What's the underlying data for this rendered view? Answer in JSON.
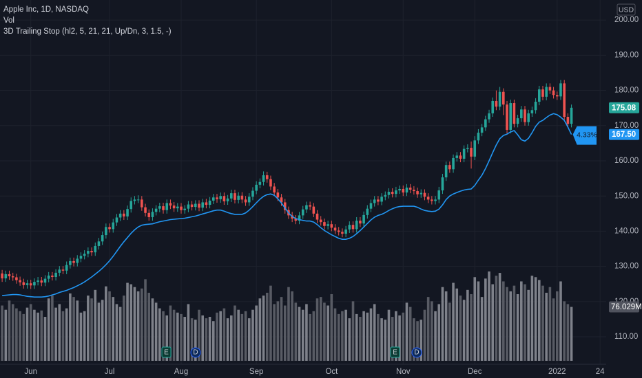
{
  "chart_data": {
    "type": "candlestick",
    "title": "Apple Inc, 1D, NASDAQ",
    "indicators": [
      "Vol",
      "3D Trailing Stop (hl2, 5, 21, 21, Up/Dn, 3, 1.5, -)"
    ],
    "currency": "USD",
    "grid": true,
    "xlim": [
      -0.6,
      168.7
    ],
    "xticks": [
      {
        "value": 8,
        "label": "Jun"
      },
      {
        "value": 30,
        "label": "Jul"
      },
      {
        "value": 50,
        "label": "Aug"
      },
      {
        "value": 71,
        "label": "Sep"
      },
      {
        "value": 92,
        "label": "Oct"
      },
      {
        "value": 112,
        "label": "Nov"
      },
      {
        "value": 132,
        "label": "Dec"
      },
      {
        "value": 155,
        "label": "2022"
      },
      {
        "value": 167,
        "label": "24"
      }
    ],
    "ylim": [
      102.2,
      205.7
    ],
    "yticks": [
      {
        "value": 110,
        "label": "110.00"
      },
      {
        "value": 120,
        "label": "120.00"
      },
      {
        "value": 130,
        "label": "130.00"
      },
      {
        "value": 140,
        "label": "140.00"
      },
      {
        "value": 150,
        "label": "150.00"
      },
      {
        "value": 160,
        "label": "160.00"
      },
      {
        "value": 170,
        "label": "170.00"
      },
      {
        "value": 180,
        "label": "180.00"
      },
      {
        "value": 190,
        "label": "190.00"
      },
      {
        "value": 200,
        "label": "200.00"
      }
    ],
    "events": [
      "E",
      "D",
      "E",
      "D"
    ],
    "candles": {
      "up_color": "#26a69a",
      "down_color": "#ef5350",
      "last_label": "175.08",
      "open": [
        128.0,
        126.6,
        127.8,
        127.2,
        126.9,
        126.1,
        125.5,
        124.7,
        125.2,
        124.6,
        125.6,
        126.0,
        125.4,
        126.5,
        127.4,
        127.0,
        128.2,
        129.1,
        128.8,
        130.4,
        131.5,
        131.0,
        132.2,
        133.0,
        133.6,
        134.4,
        134.0,
        135.8,
        137.1,
        138.9,
        141.2,
        140.6,
        142.5,
        143.9,
        145.0,
        144.2,
        146.3,
        148.6,
        149.0,
        149.0,
        146.8,
        145.2,
        144.0,
        145.5,
        146.4,
        147.1,
        146.0,
        148.0,
        147.3,
        146.5,
        147.0,
        146.0,
        146.4,
        147.6,
        146.9,
        147.8,
        146.7,
        148.2,
        147.5,
        148.7,
        149.6,
        149.1,
        150.0,
        148.5,
        149.3,
        150.8,
        148.9,
        150.1,
        149.0,
        148.2,
        149.8,
        151.5,
        153.2,
        154.0,
        155.9,
        154.8,
        152.7,
        151.0,
        149.6,
        148.2,
        146.0,
        144.5,
        143.6,
        143.0,
        144.5,
        146.2,
        147.4,
        147.0,
        145.0,
        143.3,
        142.6,
        141.5,
        142.0,
        141.0,
        140.2,
        139.8,
        139.3,
        140.5,
        141.8,
        140.6,
        143.0,
        142.2,
        144.6,
        146.4,
        148.0,
        149.0,
        148.4,
        149.8,
        150.3,
        151.2,
        150.6,
        151.6,
        152.0,
        151.0,
        152.4,
        151.8,
        151.4,
        150.5,
        150.9,
        149.8,
        149.0,
        148.6,
        149.0,
        151.6,
        155.3,
        158.8,
        157.6,
        160.8,
        161.5,
        160.6,
        163.4,
        163.7,
        161.2,
        165.8,
        168.0,
        169.5,
        171.8,
        173.5,
        177.0,
        175.4,
        179.6,
        176.0,
        168.8,
        176.4,
        170.5,
        172.1,
        174.6,
        171.0,
        173.5,
        174.4,
        176.8,
        180.3,
        178.2,
        181.0,
        180.0,
        178.7,
        178.3,
        182.0,
        172.5,
        170.5
      ],
      "high": [
        129.0,
        128.8,
        128.8,
        128.2,
        127.9,
        127.1,
        126.5,
        126.2,
        126.2,
        126.6,
        127.0,
        127.0,
        127.5,
        128.4,
        128.4,
        129.2,
        130.1,
        130.1,
        131.4,
        132.5,
        132.5,
        133.2,
        134.0,
        134.6,
        135.4,
        135.4,
        136.8,
        138.1,
        139.9,
        142.2,
        142.2,
        143.5,
        144.9,
        146.0,
        146.0,
        147.3,
        149.6,
        150.0,
        150.2,
        150.0,
        147.8,
        146.2,
        146.5,
        147.4,
        148.1,
        148.1,
        149.0,
        149.0,
        148.3,
        148.0,
        148.0,
        147.4,
        148.6,
        148.6,
        148.8,
        148.8,
        149.2,
        149.2,
        149.7,
        150.6,
        150.6,
        151.0,
        151.0,
        150.3,
        151.8,
        151.8,
        151.1,
        151.1,
        150.0,
        150.8,
        152.5,
        154.2,
        155.0,
        157.0,
        156.9,
        155.8,
        153.7,
        152.0,
        150.6,
        149.2,
        147.0,
        145.5,
        144.6,
        145.5,
        147.2,
        148.4,
        148.4,
        148.0,
        146.0,
        144.3,
        143.6,
        143.0,
        143.0,
        142.0,
        141.2,
        140.8,
        141.5,
        142.8,
        142.8,
        144.0,
        144.0,
        145.6,
        147.4,
        149.0,
        150.0,
        150.0,
        150.8,
        151.3,
        152.2,
        152.2,
        152.6,
        153.0,
        153.0,
        153.4,
        153.4,
        152.8,
        152.4,
        151.9,
        151.9,
        150.8,
        150.0,
        150.0,
        152.6,
        156.3,
        159.8,
        159.8,
        161.8,
        162.5,
        162.5,
        164.4,
        164.7,
        165.5,
        167.0,
        169.0,
        170.5,
        172.8,
        174.5,
        178.0,
        180.0,
        181.0,
        180.6,
        177.0,
        177.4,
        177.4,
        173.1,
        175.6,
        175.6,
        174.5,
        175.4,
        177.8,
        181.3,
        181.3,
        182.0,
        182.0,
        181.0,
        179.7,
        183.0,
        183.0,
        173.5,
        176.0
      ],
      "low": [
        125.6,
        125.6,
        126.2,
        125.9,
        125.1,
        124.5,
        123.7,
        123.7,
        123.6,
        123.6,
        124.6,
        124.4,
        124.4,
        125.5,
        126.0,
        126.0,
        127.2,
        127.8,
        127.8,
        129.4,
        130.0,
        130.0,
        131.2,
        132.0,
        132.6,
        133.0,
        133.0,
        134.8,
        136.1,
        137.9,
        139.6,
        139.6,
        141.5,
        142.9,
        143.2,
        143.2,
        145.3,
        147.6,
        148.0,
        145.8,
        144.2,
        143.0,
        143.0,
        144.5,
        145.4,
        145.0,
        145.0,
        146.3,
        145.5,
        145.5,
        145.0,
        145.0,
        145.4,
        145.9,
        145.9,
        145.7,
        145.7,
        146.5,
        146.5,
        147.7,
        148.1,
        148.1,
        147.5,
        147.5,
        148.3,
        147.9,
        147.9,
        148.0,
        147.2,
        147.2,
        148.8,
        150.5,
        152.2,
        153.0,
        153.8,
        151.7,
        150.0,
        148.6,
        147.2,
        145.0,
        143.5,
        142.6,
        142.0,
        142.0,
        143.5,
        145.2,
        146.0,
        144.0,
        142.3,
        141.6,
        140.5,
        140.5,
        140.0,
        139.2,
        138.8,
        138.3,
        138.3,
        139.5,
        139.6,
        139.6,
        141.2,
        141.2,
        143.6,
        145.4,
        147.0,
        147.4,
        147.4,
        148.8,
        149.3,
        149.6,
        149.6,
        150.6,
        150.0,
        150.0,
        150.8,
        150.4,
        149.5,
        149.5,
        148.8,
        148.0,
        147.6,
        147.6,
        148.0,
        150.6,
        154.3,
        156.6,
        156.6,
        159.8,
        159.6,
        159.6,
        162.4,
        157.8,
        160.2,
        164.8,
        167.0,
        168.5,
        170.8,
        172.5,
        174.4,
        174.4,
        173.0,
        167.8,
        167.8,
        169.5,
        169.5,
        171.1,
        170.0,
        170.0,
        172.5,
        173.4,
        175.8,
        177.2,
        177.2,
        179.0,
        177.7,
        177.3,
        177.3,
        171.5,
        169.5,
        169.5
      ],
      "close": [
        126.6,
        127.8,
        127.2,
        126.9,
        126.1,
        125.5,
        124.7,
        125.2,
        124.6,
        125.6,
        126.0,
        125.4,
        126.5,
        127.4,
        127.0,
        128.2,
        129.1,
        128.8,
        130.4,
        131.5,
        131.0,
        132.2,
        133.0,
        133.6,
        134.4,
        134.0,
        135.8,
        137.1,
        138.9,
        141.2,
        140.6,
        142.5,
        143.9,
        145.0,
        144.2,
        146.3,
        148.6,
        149.0,
        149.0,
        146.8,
        145.2,
        144.0,
        145.5,
        146.4,
        147.1,
        146.0,
        148.0,
        147.3,
        146.5,
        147.0,
        146.0,
        146.4,
        147.6,
        146.9,
        147.8,
        146.7,
        148.2,
        147.5,
        148.7,
        149.6,
        149.1,
        150.0,
        148.5,
        149.3,
        150.8,
        148.9,
        150.1,
        149.0,
        148.2,
        149.8,
        151.5,
        153.2,
        154.0,
        155.9,
        154.8,
        152.7,
        151.0,
        149.6,
        148.2,
        146.0,
        144.5,
        143.6,
        143.0,
        144.5,
        146.2,
        147.4,
        147.0,
        145.0,
        143.3,
        142.6,
        141.5,
        142.0,
        141.0,
        140.2,
        139.8,
        139.3,
        140.5,
        141.8,
        140.6,
        143.0,
        142.2,
        144.6,
        146.4,
        148.0,
        149.0,
        148.4,
        149.8,
        150.3,
        151.2,
        150.6,
        151.6,
        152.0,
        151.0,
        152.4,
        151.8,
        151.4,
        150.5,
        150.9,
        149.8,
        149.0,
        148.6,
        149.0,
        151.6,
        155.3,
        158.8,
        157.6,
        160.8,
        161.5,
        160.6,
        163.4,
        163.7,
        161.2,
        165.8,
        168.0,
        169.5,
        171.8,
        173.5,
        177.0,
        175.4,
        179.6,
        176.0,
        168.8,
        176.4,
        170.5,
        172.1,
        174.6,
        171.0,
        173.5,
        174.4,
        176.8,
        180.3,
        178.2,
        181.0,
        180.0,
        178.7,
        178.3,
        182.0,
        172.5,
        170.5,
        175.08
      ]
    },
    "trailing_stop": {
      "color": "#2196f3",
      "last_label": "167.50",
      "annotation": "4.33%",
      "values": [
        121.7,
        121.8,
        121.9,
        122.0,
        122.0,
        121.9,
        121.7,
        121.5,
        121.4,
        121.3,
        121.3,
        121.3,
        121.4,
        121.6,
        121.9,
        122.2,
        122.6,
        122.9,
        123.2,
        123.6,
        124.0,
        124.5,
        125.0,
        125.6,
        126.3,
        127.0,
        127.8,
        128.6,
        129.5,
        130.5,
        131.6,
        132.9,
        134.3,
        135.7,
        137.0,
        138.2,
        139.4,
        140.4,
        141.2,
        141.7,
        141.9,
        142.0,
        142.1,
        142.4,
        142.7,
        142.9,
        143.1,
        143.3,
        143.4,
        143.5,
        143.6,
        143.7,
        143.9,
        144.1,
        144.3,
        144.6,
        144.9,
        145.2,
        145.5,
        145.8,
        146.0,
        146.0,
        145.7,
        145.3,
        145.0,
        144.8,
        144.8,
        144.8,
        145.2,
        146.0,
        147.0,
        148.1,
        149.1,
        149.9,
        150.4,
        150.6,
        150.2,
        149.2,
        148.0,
        146.6,
        145.2,
        144.2,
        143.6,
        143.3,
        143.1,
        142.9,
        142.9,
        142.6,
        141.9,
        141.0,
        140.2,
        139.6,
        139.0,
        138.5,
        138.0,
        137.7,
        137.7,
        138.0,
        138.5,
        139.3,
        140.2,
        141.2,
        142.2,
        143.2,
        144.0,
        144.5,
        144.8,
        145.3,
        145.9,
        146.4,
        146.8,
        147.0,
        147.1,
        147.1,
        147.1,
        147.1,
        146.8,
        146.3,
        145.9,
        145.7,
        145.6,
        145.7,
        146.3,
        147.5,
        149.0,
        150.0,
        150.6,
        151.0,
        151.4,
        151.7,
        151.9,
        152.0,
        153.0,
        154.5,
        155.9,
        157.8,
        160.0,
        162.3,
        164.5,
        166.3,
        167.2,
        167.6,
        168.2,
        168.6,
        167.4,
        166.0,
        165.6,
        166.4,
        168.0,
        169.8,
        171.0,
        171.5,
        172.3,
        173.0,
        173.4,
        173.1,
        172.4,
        171.5,
        169.6,
        167.5
      ]
    },
    "volume": {
      "up_color": "#7e818a",
      "down_color": "#585b64",
      "last_label": "76.029M",
      "values": [
        78,
        72,
        85,
        80,
        74,
        70,
        66,
        75,
        80,
        72,
        68,
        71,
        62,
        88,
        92,
        75,
        80,
        70,
        74,
        95,
        90,
        85,
        68,
        70,
        92,
        88,
        100,
        82,
        86,
        105,
        98,
        90,
        80,
        76,
        92,
        110,
        108,
        104,
        98,
        102,
        115,
        96,
        88,
        82,
        74,
        70,
        64,
        78,
        72,
        68,
        66,
        62,
        80,
        60,
        58,
        72,
        64,
        60,
        62,
        56,
        68,
        70,
        74,
        60,
        64,
        78,
        72,
        66,
        70,
        60,
        72,
        78,
        88,
        92,
        96,
        106,
        80,
        84,
        90,
        78,
        104,
        98,
        82,
        76,
        72,
        80,
        66,
        70,
        88,
        90,
        82,
        78,
        94,
        74,
        66,
        70,
        72,
        60,
        84,
        66,
        62,
        70,
        68,
        74,
        80,
        66,
        60,
        58,
        72,
        62,
        70,
        64,
        68,
        82,
        76,
        60,
        56,
        58,
        72,
        90,
        84,
        70,
        80,
        104,
        98,
        82,
        110,
        102,
        92,
        86,
        100,
        94,
        118,
        112,
        90,
        116,
        126,
        108,
        120,
        124,
        112,
        104,
        98,
        106,
        94,
        112,
        108,
        100,
        120,
        118,
        114,
        106,
        96,
        104,
        88,
        98,
        112,
        84,
        80,
        76.029
      ]
    }
  }
}
